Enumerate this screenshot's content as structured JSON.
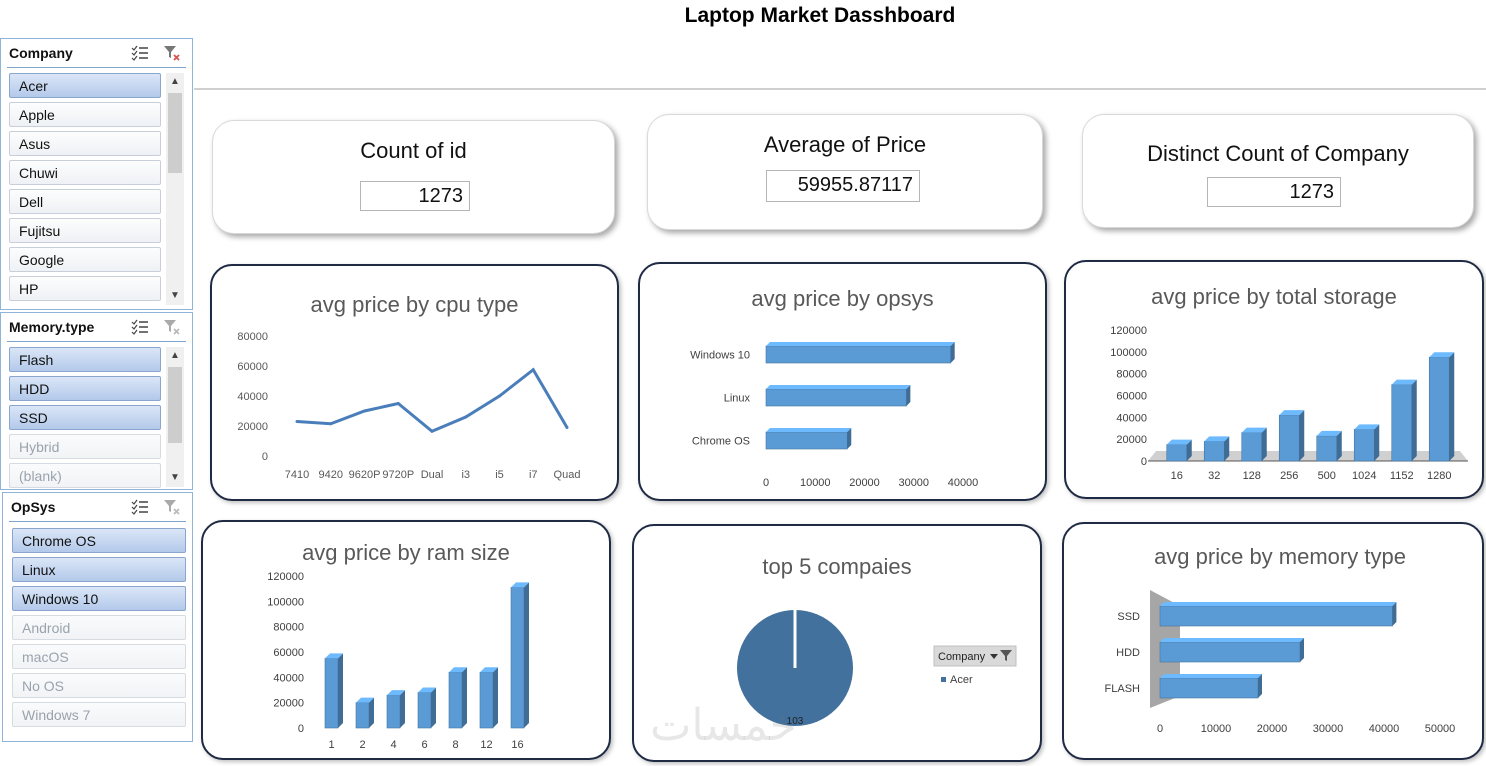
{
  "dashboard": {
    "title": "Laptop Market Dasshboard"
  },
  "slicers": {
    "company": {
      "title": "Company",
      "items": [
        {
          "label": "Acer",
          "state": "selected"
        },
        {
          "label": "Apple",
          "state": "normal"
        },
        {
          "label": "Asus",
          "state": "normal"
        },
        {
          "label": "Chuwi",
          "state": "normal"
        },
        {
          "label": "Dell",
          "state": "normal"
        },
        {
          "label": "Fujitsu",
          "state": "normal"
        },
        {
          "label": "Google",
          "state": "normal"
        },
        {
          "label": "HP",
          "state": "normal"
        }
      ]
    },
    "memory_type": {
      "title": "Memory.type",
      "items": [
        {
          "label": "Flash",
          "state": "selected"
        },
        {
          "label": "HDD",
          "state": "selected"
        },
        {
          "label": "SSD",
          "state": "selected"
        },
        {
          "label": "Hybrid",
          "state": "dim"
        },
        {
          "label": "(blank)",
          "state": "dim"
        }
      ]
    },
    "opsys": {
      "title": "OpSys",
      "items": [
        {
          "label": "Chrome OS",
          "state": "selected"
        },
        {
          "label": "Linux",
          "state": "selected"
        },
        {
          "label": "Windows 10",
          "state": "selected"
        },
        {
          "label": "Android",
          "state": "dim"
        },
        {
          "label": "macOS",
          "state": "dim"
        },
        {
          "label": "No OS",
          "state": "dim"
        },
        {
          "label": "Windows 7",
          "state": "dim"
        }
      ]
    },
    "icons": {
      "multi_select": "multi-select-icon",
      "clear_filter": "clear-filter-icon"
    }
  },
  "kpis": {
    "count_id": {
      "label": "Count of id",
      "value": "1273"
    },
    "avg_price": {
      "label": "Average of Price",
      "value": "59955.87117"
    },
    "distinct_company": {
      "label": "Distinct Count of Company",
      "value": "1273"
    }
  },
  "colors": {
    "series": "#5b9bd5",
    "line": "#4a7ebb",
    "pie": "#41719c",
    "card_border": "#1f2a44"
  },
  "watermark": "خمسات",
  "chart_data": [
    {
      "id": "cpu",
      "type": "line",
      "title": "avg price by cpu type",
      "categories": [
        "7410",
        "9420",
        "9620P",
        "9720P",
        "Dual",
        "i3",
        "i5",
        "i7",
        "Quad"
      ],
      "values": [
        23000,
        21500,
        30000,
        35000,
        16500,
        26000,
        40000,
        57500,
        19000
      ],
      "ylim": [
        0,
        80000
      ],
      "yticks": [
        "0",
        "20000",
        "40000",
        "60000",
        "80000"
      ]
    },
    {
      "id": "opsys",
      "type": "bar",
      "orientation": "horizontal",
      "title": "avg price by opsys",
      "categories": [
        "Windows 10",
        "Linux",
        "Chrome OS"
      ],
      "values": [
        37500,
        28500,
        16500
      ],
      "xlim": [
        0,
        40000
      ],
      "xticks": [
        "0",
        "10000",
        "20000",
        "30000",
        "40000"
      ]
    },
    {
      "id": "storage",
      "type": "bar",
      "title": "avg price by total storage",
      "categories": [
        "16",
        "32",
        "128",
        "256",
        "500",
        "1024",
        "1152",
        "1280"
      ],
      "values": [
        15000,
        18000,
        26000,
        42000,
        23000,
        29000,
        70000,
        95000
      ],
      "ylim": [
        0,
        120000
      ],
      "yticks": [
        "0",
        "20000",
        "40000",
        "60000",
        "80000",
        "100000",
        "120000"
      ]
    },
    {
      "id": "ram",
      "type": "bar",
      "title": "avg price by ram size",
      "categories": [
        "1",
        "2",
        "4",
        "6",
        "8",
        "12",
        "16"
      ],
      "values": [
        55000,
        20000,
        26000,
        28000,
        44000,
        44000,
        111000
      ],
      "ylim": [
        0,
        120000
      ],
      "yticks": [
        "0",
        "20000",
        "40000",
        "60000",
        "80000",
        "100000",
        "120000"
      ]
    },
    {
      "id": "top5",
      "type": "pie",
      "title": "top 5 compaies",
      "categories": [
        "Acer"
      ],
      "values": [
        103
      ],
      "data_label": "103",
      "legend": {
        "title": "Company",
        "entries": [
          "Acer"
        ],
        "placement": "right"
      }
    },
    {
      "id": "memory",
      "type": "bar",
      "orientation": "horizontal",
      "title": "avg price by memory type",
      "categories": [
        "SSD",
        "HDD",
        "FLASH"
      ],
      "values": [
        41500,
        25000,
        17500
      ],
      "xlim": [
        0,
        50000
      ],
      "xticks": [
        "0",
        "10000",
        "20000",
        "30000",
        "40000",
        "50000"
      ]
    }
  ]
}
